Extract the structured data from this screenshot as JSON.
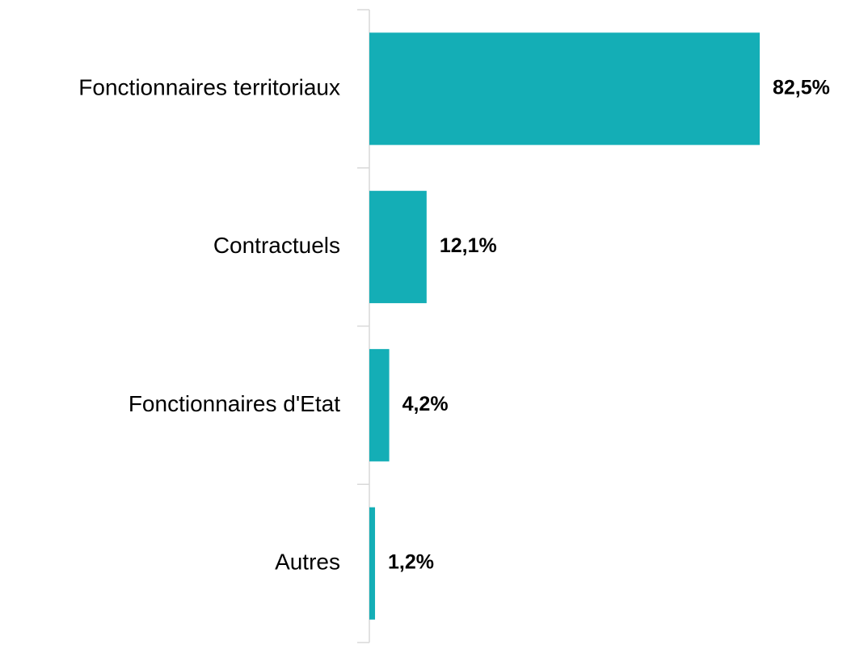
{
  "chart_data": {
    "type": "bar",
    "orientation": "horizontal",
    "categories": [
      "Fonctionnaires territoriaux",
      "Contractuels",
      "Fonctionnaires d'Etat",
      "Autres"
    ],
    "values": [
      82.5,
      12.1,
      4.2,
      1.2
    ],
    "value_labels": [
      "82,5%",
      "12,1%",
      "4,2%",
      "1,2%"
    ],
    "color": "#14aeb6"
  }
}
